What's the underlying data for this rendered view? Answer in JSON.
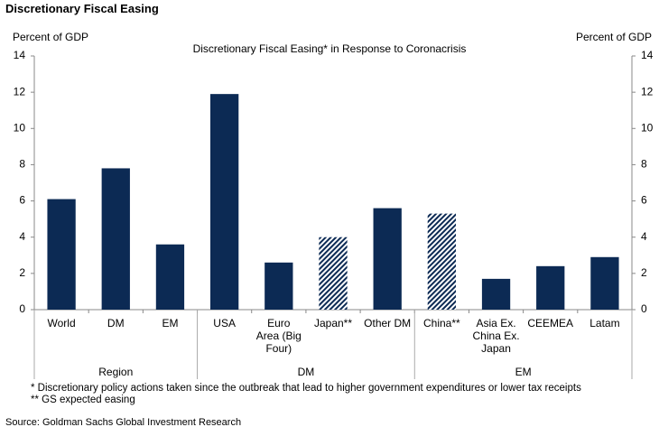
{
  "header": {
    "title": "Discretionary Fiscal Easing"
  },
  "chart_data": {
    "type": "bar",
    "title": "Discretionary Fiscal Easing* in Response to Coronacrisis",
    "ylabel": "Percent of GDP",
    "y2label": "Percent of GDP",
    "categories": [
      "World",
      "DM",
      "EM",
      "USA",
      "Euro Area (Big Four)",
      "Japan**",
      "Other DM",
      "China**",
      "Asia Ex. China Ex. Japan",
      "CEEMEA",
      "Latam"
    ],
    "values": [
      6.1,
      7.8,
      3.6,
      11.9,
      2.6,
      4.0,
      5.6,
      5.3,
      1.7,
      2.4,
      2.9
    ],
    "patterns": [
      "solid",
      "solid",
      "solid",
      "solid",
      "solid",
      "hatched",
      "solid",
      "hatched",
      "solid",
      "solid",
      "solid"
    ],
    "color": "#0c2a54",
    "groups": [
      {
        "name": "Region",
        "count": 3
      },
      {
        "name": "DM",
        "count": 4
      },
      {
        "name": "EM",
        "count": 4
      }
    ],
    "ylim": [
      0,
      14
    ],
    "yticks": [
      0,
      2,
      4,
      6,
      8,
      10,
      12,
      14
    ],
    "y2lim": [
      0,
      14
    ],
    "y2ticks": [
      0,
      2,
      4,
      6,
      8,
      10,
      12,
      14
    ]
  },
  "footnotes": [
    "* Discretionary policy actions taken since the outbreak that lead to higher government expenditures or lower tax receipts",
    "** GS expected easing"
  ],
  "source": "Source: Goldman Sachs Global Investment Research"
}
